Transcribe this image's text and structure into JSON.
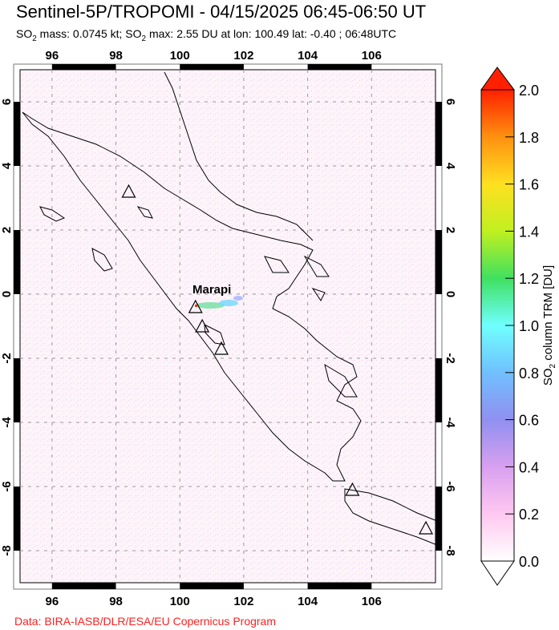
{
  "header": {
    "title": "Sentinel-5P/TROPOMI - 04/15/2025 06:45-06:50 UT",
    "subtitle_parts": [
      "SO",
      "2",
      " mass: 0.0745 kt; SO",
      "2",
      " max: 2.55 DU at lon: 100.49 lat: -0.40 ; 06:48UTC"
    ]
  },
  "map": {
    "lon_range": [
      95,
      108
    ],
    "lat_range": [
      -9,
      7
    ],
    "lon_ticks": [
      "96",
      "98",
      "100",
      "102",
      "104",
      "106"
    ],
    "lat_ticks": [
      "6",
      "4",
      "2",
      "0",
      "-2",
      "-4",
      "-6",
      "-8"
    ],
    "grid": "dashed",
    "volcano_label": "Marapi",
    "volcanoes": [
      {
        "lon": 98.4,
        "lat": 3.2
      },
      {
        "lon": 100.49,
        "lat": -0.4
      },
      {
        "lon": 100.7,
        "lat": -1.0
      },
      {
        "lon": 101.3,
        "lat": -1.7
      },
      {
        "lon": 105.4,
        "lat": -6.1
      },
      {
        "lon": 107.7,
        "lat": -7.3
      }
    ],
    "plume_color_max": "#ff3000"
  },
  "colorbar": {
    "label_parts": [
      "SO",
      "2",
      " column TRM [DU]"
    ],
    "ticks": [
      "0.0",
      "0.2",
      "0.4",
      "0.6",
      "0.8",
      "1.0",
      "1.2",
      "1.4",
      "1.6",
      "1.8",
      "2.0"
    ],
    "range": [
      0,
      2.0
    ],
    "colors": [
      "#ffffff",
      "#ffc8f0",
      "#d8a0f0",
      "#9090f0",
      "#70c0ff",
      "#70ffff",
      "#40e060",
      "#c0f020",
      "#ffe020",
      "#ff9010",
      "#ff2000"
    ]
  },
  "footer": {
    "credit": "Data: BIRA-IASB/DLR/ESA/EU Copernicus Program"
  }
}
